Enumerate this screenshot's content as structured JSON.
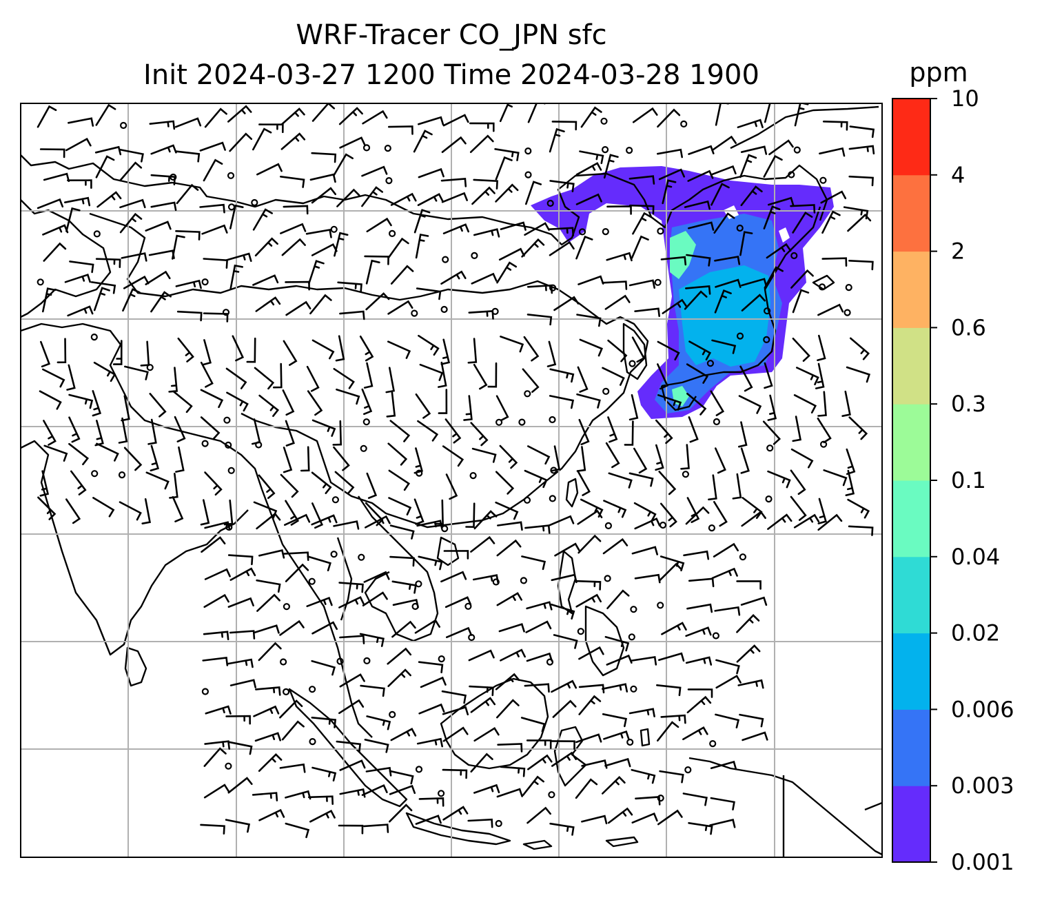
{
  "title": {
    "line1": "WRF-Tracer CO_JPN sfc",
    "line2": "Init 2024-03-27 1200 Time 2024-03-28 1900"
  },
  "colorbar": {
    "unit": "ppm",
    "levels": [
      "0.001",
      "0.003",
      "0.006",
      "0.02",
      "0.04",
      "0.1",
      "0.3",
      "0.6",
      "2",
      "4",
      "10"
    ],
    "colors": [
      "#652cfc",
      "#3574f6",
      "#03b2ed",
      "#2fdbd5",
      "#6afbc1",
      "#9cfb98",
      "#d0e186",
      "#feb262",
      "#fd713f",
      "#fe2a16"
    ]
  },
  "map": {
    "region": "East and Southeast Asia",
    "grid": true,
    "plume_colors": [
      "#652cfc",
      "#3574f6",
      "#03b2ed",
      "#6afbc1"
    ]
  }
}
